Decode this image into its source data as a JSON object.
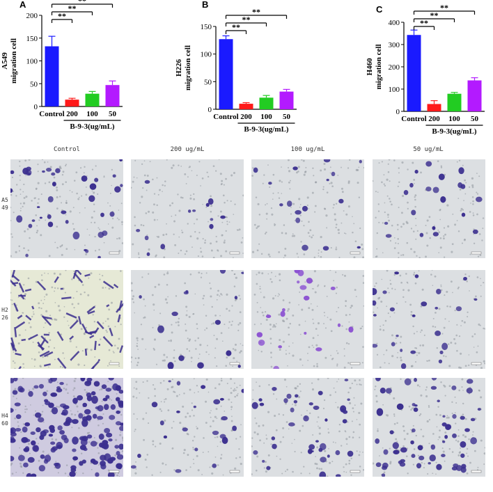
{
  "panels": {
    "a": "A",
    "b": "B",
    "c": "C"
  },
  "chart_data": [
    {
      "type": "bar",
      "categories": [
        "Control",
        "200",
        "100",
        "50"
      ],
      "values": [
        132,
        15,
        28,
        47
      ],
      "errors": [
        22,
        3,
        5,
        9
      ],
      "ylabel_line1": "A549",
      "ylabel_line2": "migration cell",
      "group_label": "B-9-3(ug/mL)",
      "ylim": [
        0,
        200
      ],
      "yticks": [
        "0",
        "50",
        "100",
        "150",
        "200"
      ],
      "significance": [
        "**",
        "**",
        "**"
      ],
      "colors": [
        "#1a1aff",
        "#ff1a1a",
        "#22cc22",
        "#b31aff"
      ]
    },
    {
      "type": "bar",
      "categories": [
        "Control",
        "200",
        "100",
        "50"
      ],
      "values": [
        127,
        10,
        21,
        32
      ],
      "errors": [
        6,
        2,
        4,
        4
      ],
      "ylabel_line1": "H226",
      "ylabel_line2": "migration cell",
      "group_label": "B-9-3(ug/mL)",
      "ylim": [
        0,
        150
      ],
      "yticks": [
        "0",
        "50",
        "100",
        "150"
      ],
      "significance": [
        "**",
        "**",
        "**"
      ],
      "colors": [
        "#1a1aff",
        "#ff1a1a",
        "#22cc22",
        "#b31aff"
      ]
    },
    {
      "type": "bar",
      "categories": [
        "Control",
        "200",
        "100",
        "50"
      ],
      "values": [
        343,
        33,
        79,
        139
      ],
      "errors": [
        22,
        15,
        6,
        12
      ],
      "ylabel_line1": "H460",
      "ylabel_line2": "migration cell",
      "group_label": "B-9-3(ug/mL)",
      "ylim": [
        0,
        400
      ],
      "yticks": [
        "0",
        "100",
        "200",
        "300",
        "400"
      ],
      "significance": [
        "**",
        "**",
        "**"
      ],
      "colors": [
        "#1a1aff",
        "#ff1a1a",
        "#22cc22",
        "#b31aff"
      ]
    }
  ],
  "micrographs": {
    "columns": [
      "Control",
      "200 ug/mL",
      "100 ug/mL",
      "50 ug/mL"
    ],
    "rows": [
      "A549",
      "H226",
      "H460"
    ],
    "stain_color": "#3b2f8f"
  }
}
